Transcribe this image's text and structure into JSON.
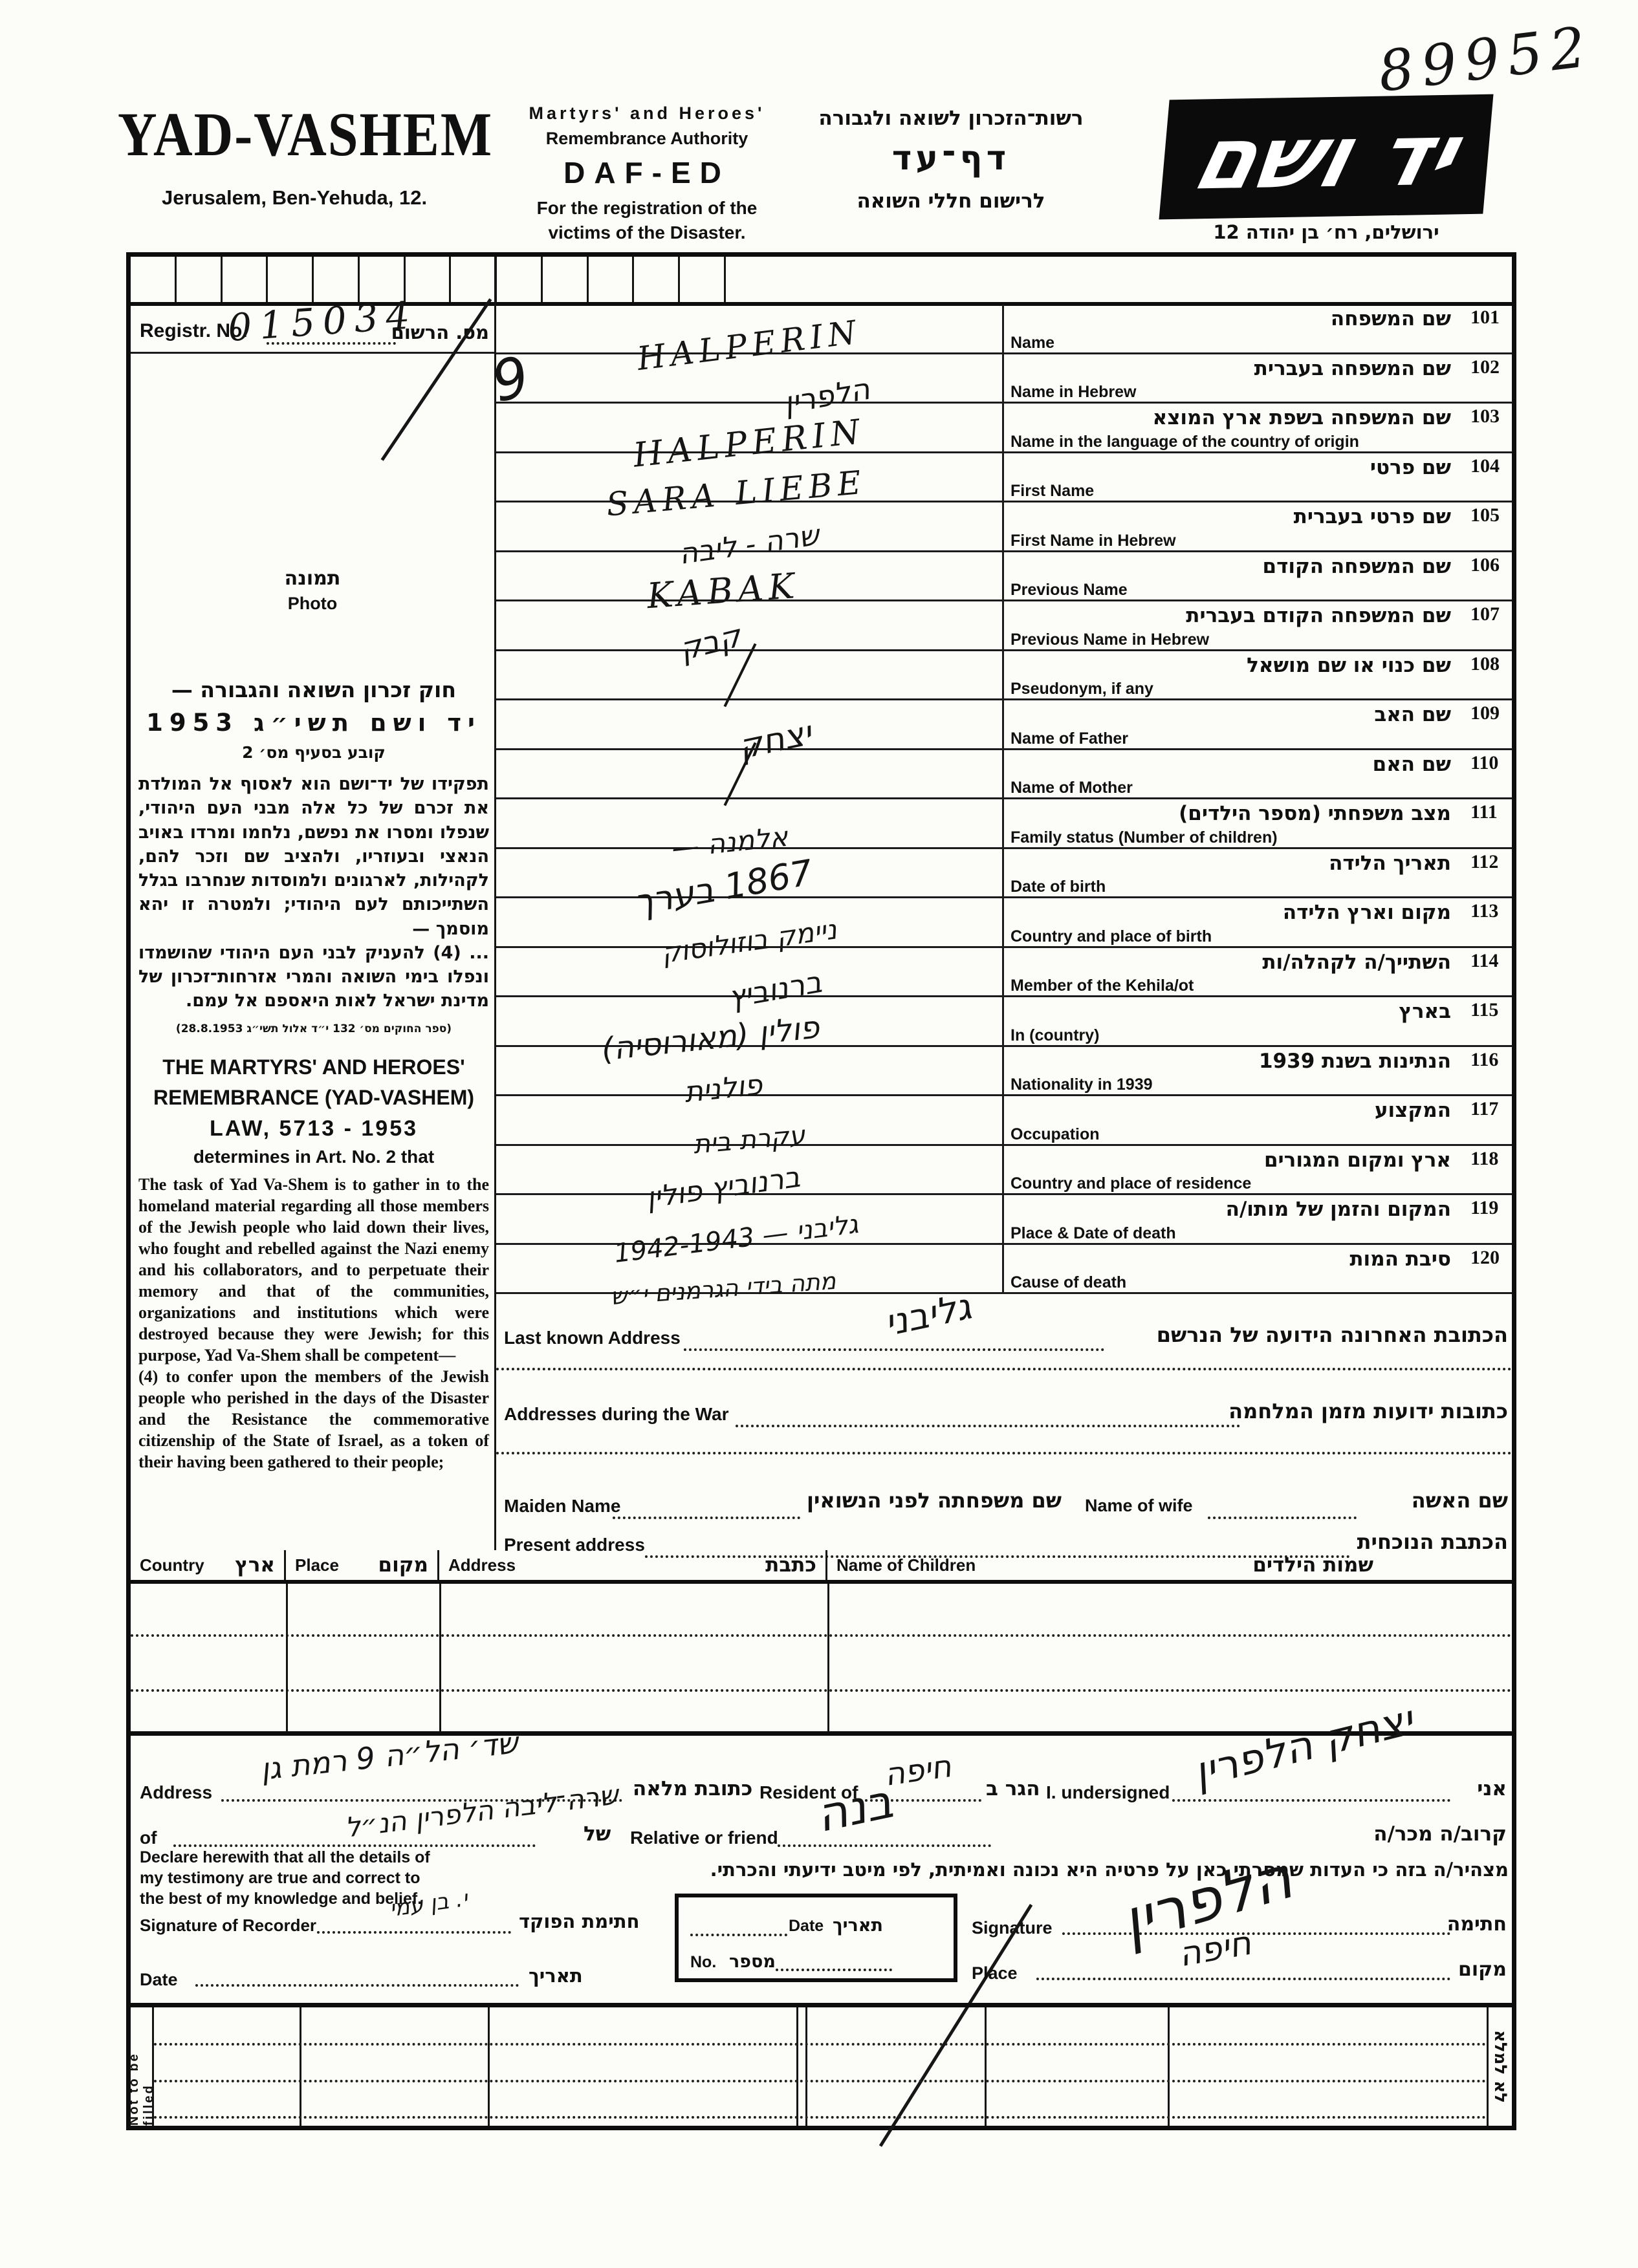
{
  "header": {
    "handwritten_number": "89952",
    "left": {
      "title": "YAD-VASHEM",
      "address": "Jerusalem, Ben-Yehuda, 12."
    },
    "center_en": {
      "line1": "Martyrs' and Heroes'",
      "line2": "Remembrance Authority",
      "title": "DAF-ED",
      "line3": "For the registration of the",
      "line4": "victims of the Disaster."
    },
    "center_he": {
      "line1": "רשות־הזכרון לשואה ולגבורה",
      "title": "דף־עד",
      "line2": "לרישום חללי השואה"
    },
    "logo": {
      "text": "יד ושם",
      "address_he": "ירושלים, רח׳ בן יהודה 12"
    }
  },
  "registration": {
    "label_en": "Registr. No.",
    "label_he": "מס. הרשום",
    "value": "015034",
    "stray_mark": "9"
  },
  "photo": {
    "label_he": "תמונה",
    "label_en": "Photo"
  },
  "law_he": {
    "title_line1": "חוק זכרון השואה והגבורה —",
    "title_line2": "יד ושם תשי״ג 1953",
    "subtitle": "קובע בסעיף מס׳ 2",
    "body1": "תפקידו של יד־ושם הוא לאסוף אל המולדת את זכרם של כל אלה מבני העם היהודי, שנפלו ומסרו את נפשם, נלחמו ומרדו באויב הנאצי ובעוזריו, ולהציב שם וזכר להם, לקהילות, לארגונים ולמוסדות שנחרבו בגלל השתייכותם לעם היהודי; ולמטרה זו יהא מוסמך —",
    "body2": "... (4) להעניק לבני העם היהודי שהושמדו ונפלו בימי השואה והמרי אזרחות־זכרון של מדינת ישראל לאות היאספם אל עמם.",
    "citation": "(ספר החוקים מס׳ 132 י״ד אלול תשי״ג 28.8.1953)"
  },
  "law_en": {
    "title_line1": "THE MARTYRS' AND HEROES'",
    "title_line2": "REMEMBRANCE (YAD-VASHEM)",
    "title_line3": "LAW, 5713 - 1953",
    "subtitle": "determines in Art. No. 2 that",
    "body1": "The task of Yad Va-Shem is to gather in to the homeland material regarding all those members of the Jewish people who laid down their lives, who fought and rebelled against the Nazi enemy and his collaborators, and to perpetuate their memory and that of the communities, organizations and institutions which were destroyed because they were Jewish; for this purpose, Yad Va-Shem shall be competent—",
    "body2": "(4) to confer upon the members of the Jewish people who perished in the days of the Disaster and the Resistance the commemorative citizenship of the State of Israel, as a token of their having been gathered to their people;"
  },
  "fields": [
    {
      "num": "101",
      "he": "שם המשפחה",
      "en": "Name",
      "value": "HALPERIN",
      "script": "latin"
    },
    {
      "num": "102",
      "he": "שם המשפחה בעברית",
      "en": "Name in Hebrew",
      "value": "הלפרין",
      "script": "hebrew"
    },
    {
      "num": "103",
      "he": "שם המשפחה בשפת ארץ המוצא",
      "en": "Name in the language of the country of origin",
      "value": "HALPERIN",
      "script": "latin"
    },
    {
      "num": "104",
      "he": "שם פרטי",
      "en": "First Name",
      "value": "SARA LIEBE",
      "script": "latin"
    },
    {
      "num": "105",
      "he": "שם פרטי בעברית",
      "en": "First Name in Hebrew",
      "value": "שרה - ליבה",
      "script": "hebrew"
    },
    {
      "num": "106",
      "he": "שם המשפחה הקודם",
      "en": "Previous Name",
      "value": "KABAK",
      "script": "latin"
    },
    {
      "num": "107",
      "he": "שם המשפחה הקודם בעברית",
      "en": "Previous Name in Hebrew",
      "value": "קבק",
      "script": "hebrew"
    },
    {
      "num": "108",
      "he": "שם כנוי או שם מושאל",
      "en": "Pseudonym, if any",
      "value": "",
      "script": "mark"
    },
    {
      "num": "109",
      "he": "שם האב",
      "en": "Name of Father",
      "value": "יצחק",
      "script": "hebrew"
    },
    {
      "num": "110",
      "he": "שם האם",
      "en": "Name of Mother",
      "value": "",
      "script": "mark"
    },
    {
      "num": "111",
      "he": "מצב משפחתי (מספר הילדים)",
      "en": "Family status (Number of children)",
      "value": "אלמנה —",
      "script": "hebrew"
    },
    {
      "num": "112",
      "he": "תאריך הלידה",
      "en": "Date of birth",
      "value": "1867 בערך",
      "script": "hebrew"
    },
    {
      "num": "113",
      "he": "מקום וארץ הלידה",
      "en": "Country and place of birth",
      "value": "ניימק בוזולוסוק",
      "script": "hebrew"
    },
    {
      "num": "114",
      "he": "השתייך/ה לקהלה/ות",
      "en": "Member of the Kehila/ot",
      "value": "ברנוביץ",
      "script": "hebrew"
    },
    {
      "num": "115",
      "he": "בארץ",
      "en": "In (country)",
      "value": "פולין (מאורוסיה)",
      "script": "hebrew"
    },
    {
      "num": "116",
      "he": "הנתינות בשנת 1939",
      "en": "Nationality in 1939",
      "value": "פולנית",
      "script": "hebrew"
    },
    {
      "num": "117",
      "he": "המקצוע",
      "en": "Occupation",
      "value": "עקרת בית",
      "script": "hebrew"
    },
    {
      "num": "118",
      "he": "ארץ ומקום המגורים",
      "en": "Country and place of residence",
      "value": "ברנוביץ פולין",
      "script": "hebrew"
    },
    {
      "num": "119",
      "he": "המקום והזמן של מותו/ה",
      "en": "Place & Date of death",
      "value": "גליבני — 1942-1943",
      "script": "hebrew"
    },
    {
      "num": "120",
      "he": "סיבת המות",
      "en": "Cause of death",
      "value": "מתה בידי הגרמנים י״ש",
      "script": "hebrew"
    }
  ],
  "address_section": {
    "last_known": {
      "en": "Last known Address",
      "he": "הכתובת האחרונה הידועה של הנרשם",
      "value": "גליבני"
    },
    "during_war": {
      "en": "Addresses during the War",
      "he": "כתובות ידועות מזמן המלחמה",
      "value": ""
    },
    "maiden": {
      "en": "Maiden Name",
      "he": "שם משפחתה לפני הנשואין",
      "value": ""
    },
    "wife": {
      "en": "Name of wife",
      "he": "שם האשה",
      "value": ""
    },
    "present": {
      "en": "Present address",
      "he": "הכתבת הנוכחית",
      "value": ""
    }
  },
  "children_table": {
    "columns": [
      {
        "en": "Country",
        "he": "ארץ"
      },
      {
        "en": "Place",
        "he": "מקום"
      },
      {
        "en": "Address",
        "he": "כתבת"
      },
      {
        "en": "Name of Children",
        "he": "שמות הילדים"
      }
    ]
  },
  "declaration": {
    "i_undersigned": {
      "en": "I. undersigned",
      "he": "אני",
      "value": "יצחק הלפרין"
    },
    "resident": {
      "en": "Resident of",
      "he": "הגר ב",
      "value": "חיפה"
    },
    "address": {
      "en": "Address",
      "he": "כתובת מלאה",
      "value": "שד׳ הל״ה 9 רמת גן"
    },
    "of": {
      "en": "of",
      "he": "של",
      "value": "שרה־ליבה הלפרין הנ״ל"
    },
    "relative": {
      "en": "Relative or friend",
      "he": "קרוב/ה מכר/ה",
      "value": "בנה"
    },
    "statement_en": "Declare herewith that all the details of my testimony are true and correct to the best of my knowledge and belief.",
    "statement_he": "מצהיר/ה בזה כי העדות שמסרתי כאן על פרטיה היא נכונה ואמיתית, לפי מיטב ידיעתי והכרתי.",
    "recorder": {
      "en": "Signature of Recorder",
      "he": "חתימת הפוקד",
      "value": "י. בן עמי"
    },
    "signature": {
      "en": "Signature",
      "he": "חתימה",
      "value": "הלפרין"
    },
    "place": {
      "en": "Place",
      "he": "מקום",
      "value": "חיפה"
    },
    "date_row": {
      "en": "Date",
      "he": "תאריך"
    },
    "box": {
      "date_en": "Date",
      "date_he": "תאריך",
      "no_en": "No.",
      "no_he": "מספר"
    }
  },
  "footer": {
    "not_to_be_filled_en": "Not to be filled",
    "not_to_be_filled_he": "לא למלא"
  }
}
